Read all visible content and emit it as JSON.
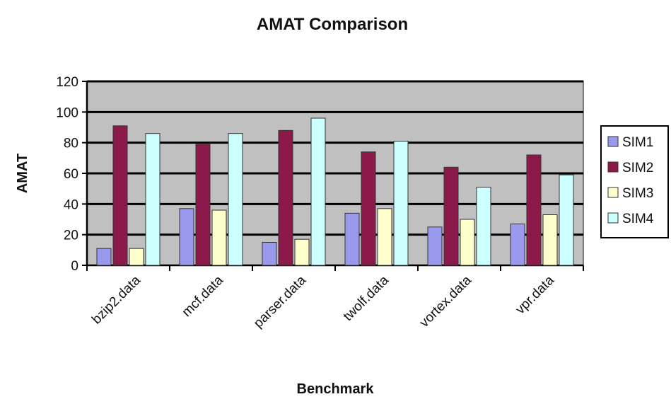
{
  "chart_data": {
    "type": "bar",
    "title": "AMAT Comparison",
    "xlabel": "Benchmark",
    "ylabel": "AMAT",
    "ylim": [
      0,
      120
    ],
    "yticks": [
      0,
      20,
      40,
      60,
      80,
      100,
      120
    ],
    "grid": true,
    "legend_position": "right",
    "categories": [
      "bzip2.data",
      "mcf.data",
      "parser.data",
      "twolf.data",
      "vortex.data",
      "vpr.data"
    ],
    "series": [
      {
        "name": "SIM1",
        "color": "#9999ee",
        "values": [
          11,
          37,
          15,
          34,
          25,
          27
        ]
      },
      {
        "name": "SIM2",
        "color": "#8b1a4a",
        "values": [
          91,
          79,
          88,
          74,
          64,
          72
        ]
      },
      {
        "name": "SIM3",
        "color": "#ffffcc",
        "values": [
          11,
          36,
          17,
          37,
          30,
          33
        ]
      },
      {
        "name": "SIM4",
        "color": "#ccffff",
        "values": [
          86,
          86,
          96,
          81,
          51,
          59
        ]
      }
    ],
    "plot_background": "#c0c0c0"
  }
}
